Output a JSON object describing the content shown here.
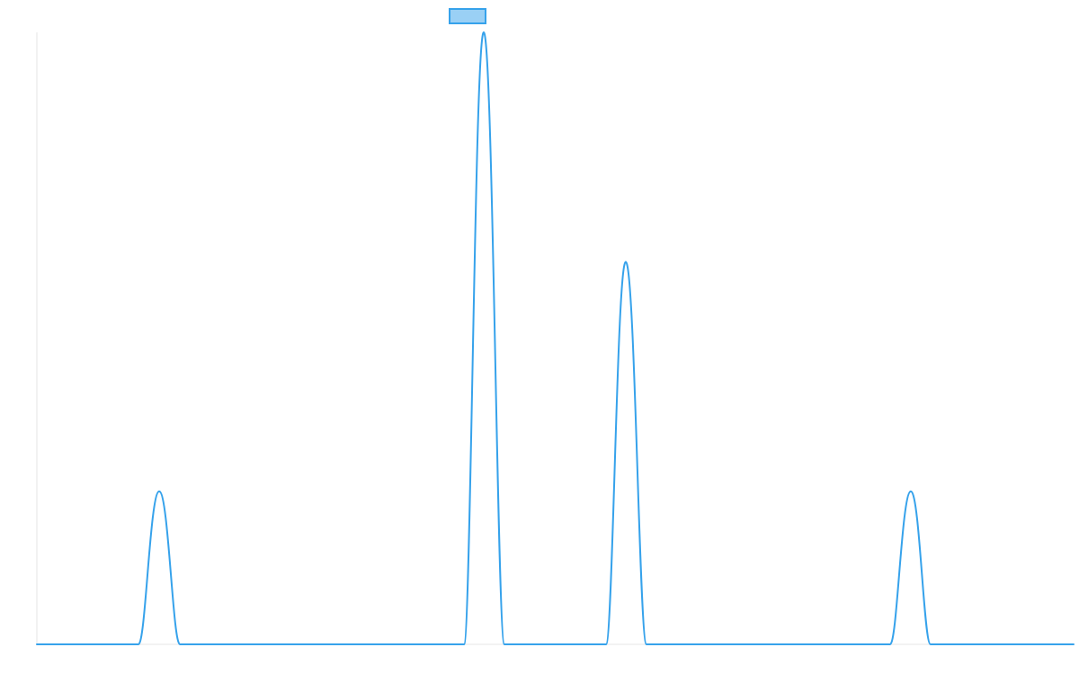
{
  "chart_data": {
    "type": "line",
    "title": "",
    "xlabel": "",
    "ylabel": "",
    "grid": false,
    "legend": {
      "position": "top-center",
      "entries": [
        {
          "label": "",
          "color": "#36A2EB"
        }
      ]
    },
    "xlim": [
      0,
      1000
    ],
    "ylim": [
      0,
      1
    ],
    "series": [
      {
        "color": "#36A2EB",
        "fill_color": "#9AD0F5",
        "points": [
          {
            "x": 0,
            "y": 0
          },
          {
            "x": 98,
            "y": 0
          },
          {
            "x": 118,
            "y": 0.25
          },
          {
            "x": 138,
            "y": 0
          },
          {
            "x": 412,
            "y": 0
          },
          {
            "x": 431,
            "y": 1.0
          },
          {
            "x": 451,
            "y": 0
          },
          {
            "x": 549,
            "y": 0
          },
          {
            "x": 568,
            "y": 0.625
          },
          {
            "x": 588,
            "y": 0
          },
          {
            "x": 823,
            "y": 0
          },
          {
            "x": 843,
            "y": 0.25
          },
          {
            "x": 862,
            "y": 0
          },
          {
            "x": 1000,
            "y": 0
          }
        ]
      }
    ]
  }
}
